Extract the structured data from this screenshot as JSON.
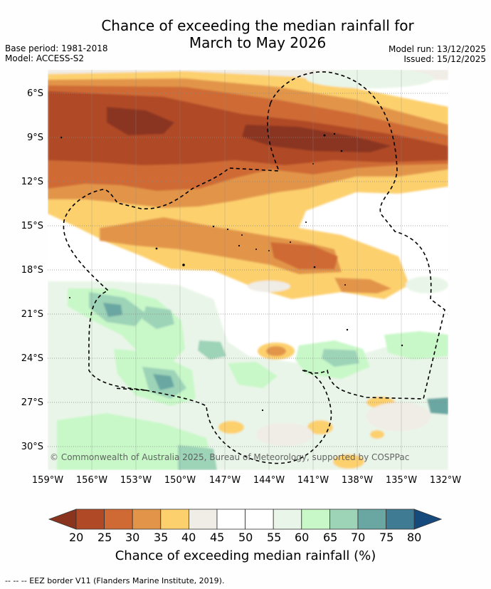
{
  "header": {
    "title_line1": "Chance of exceeding the median rainfall for",
    "title_line2": "March to May 2026",
    "base_period": "Base period: 1981-2018",
    "model": "Model: ACCESS-S2",
    "model_run": "Model run: 13/12/2025",
    "issued": "Issued: 15/12/2025"
  },
  "map": {
    "lat_labels": [
      "6°S",
      "9°S",
      "12°S",
      "15°S",
      "18°S",
      "21°S",
      "24°S",
      "27°S",
      "30°S"
    ],
    "lon_labels": [
      "159°W",
      "156°W",
      "153°W",
      "150°W",
      "147°W",
      "144°W",
      "141°W",
      "138°W",
      "135°W",
      "132°W"
    ],
    "copyright": "© Commonwealth of Australia 2025, Bureau of Meteorology, supported by COSPPac"
  },
  "colorbar": {
    "ticks": [
      "20",
      "25",
      "30",
      "35",
      "40",
      "45",
      "50",
      "55",
      "60",
      "65",
      "70",
      "75",
      "80"
    ],
    "colors": [
      "#8a3420",
      "#b04a26",
      "#cf6a35",
      "#e29548",
      "#fdd06e",
      "#f0ece6",
      "#ffffff",
      "#ffffff",
      "#e9f5e8",
      "#c8f8c8",
      "#9dd3b7",
      "#6aa7a3",
      "#3f7b93",
      "#174a7c"
    ],
    "title": "Chance of exceeding median rainfall (%)"
  },
  "footnote": "--  --  -- EEZ border V11 (Flanders Marine Institute, 2019)."
}
